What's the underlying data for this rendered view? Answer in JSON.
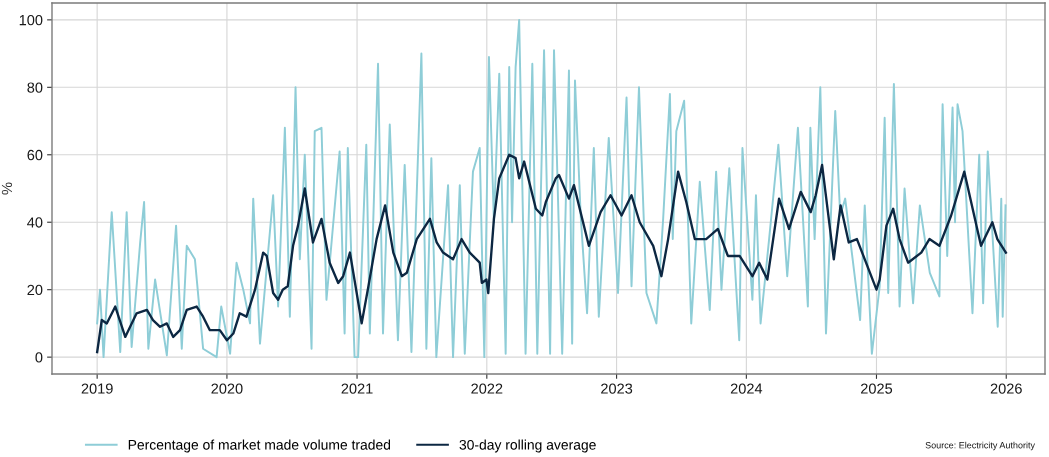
{
  "chart_data": {
    "type": "line",
    "ylabel": "%",
    "series": [
      {
        "name": "Percentage of market made volume traded",
        "color": "#8ecdd7",
        "x": [
          "2019-01-01",
          "2019-01-09",
          "2019-01-19",
          "2019-02-11",
          "2019-03-07",
          "2019-03-25",
          "2019-04-08",
          "2019-05-02",
          "2019-05-13",
          "2019-05-25",
          "2019-06-13",
          "2019-07-16",
          "2019-08-11",
          "2019-08-27",
          "2019-09-10",
          "2019-10-03",
          "2019-10-26",
          "2019-12-03",
          "2019-12-16",
          "2020-01-10",
          "2020-01-28",
          "2020-02-16",
          "2020-03-06",
          "2020-03-15",
          "2020-04-03",
          "2020-05-10",
          "2020-05-24",
          "2020-06-12",
          "2020-06-26",
          "2020-07-12",
          "2020-07-24",
          "2020-08-07",
          "2020-08-26",
          "2020-09-04",
          "2020-09-23",
          "2020-10-07",
          "2020-11-13",
          "2020-11-27",
          "2020-12-06",
          "2020-12-25",
          "2021-01-04",
          "2021-01-27",
          "2021-02-06",
          "2021-03-01",
          "2021-03-15",
          "2021-04-03",
          "2021-04-26",
          "2021-05-15",
          "2021-06-03",
          "2021-07-01",
          "2021-07-15",
          "2021-07-29",
          "2021-08-12",
          "2021-09-14",
          "2021-09-28",
          "2021-10-17",
          "2021-10-31",
          "2021-11-23",
          "2021-12-12",
          "2021-12-25",
          "2022-01-07",
          "2022-01-21",
          "2022-02-05",
          "2022-02-23",
          "2022-03-05",
          "2022-03-13",
          "2022-03-23",
          "2022-04-02",
          "2022-04-20",
          "2022-05-09",
          "2022-05-23",
          "2022-06-11",
          "2022-06-28",
          "2022-07-09",
          "2022-08-01",
          "2022-08-20",
          "2022-08-29",
          "2022-09-06",
          "2022-09-22",
          "2022-10-10",
          "2022-10-29",
          "2022-11-12",
          "2022-12-10",
          "2023-01-05",
          "2023-01-29",
          "2023-02-12",
          "2023-03-05",
          "2023-03-26",
          "2023-04-23",
          "2023-05-12",
          "2023-05-31",
          "2023-06-08",
          "2023-06-18",
          "2023-07-10",
          "2023-07-30",
          "2023-08-23",
          "2023-09-20",
          "2023-10-08",
          "2023-10-23",
          "2023-11-14",
          "2023-12-12",
          "2023-12-21",
          "2024-01-18",
          "2024-01-28",
          "2024-02-10",
          "2024-03-05",
          "2024-03-31",
          "2024-04-25",
          "2024-05-25",
          "2024-06-22",
          "2024-06-29",
          "2024-07-11",
          "2024-07-27",
          "2024-08-12",
          "2024-09-07",
          "2024-09-21",
          "2024-10-05",
          "2024-11-16",
          "2024-11-29",
          "2024-12-19",
          "2025-01-10",
          "2025-01-24",
          "2025-02-03",
          "2025-02-19",
          "2025-03-07",
          "2025-03-21",
          "2025-04-14",
          "2025-05-03",
          "2025-05-31",
          "2025-06-27",
          "2025-07-06",
          "2025-07-19",
          "2025-08-03",
          "2025-08-10",
          "2025-08-17",
          "2025-08-31",
          "2025-09-28",
          "2025-10-17",
          "2025-10-28",
          "2025-11-10",
          "2025-12-08",
          "2025-12-18",
          "2025-12-22",
          "2025-12-30"
        ],
        "values": [
          10,
          20,
          0,
          43,
          1.5,
          43,
          3,
          34,
          46,
          2.5,
          23,
          0.5,
          39,
          2.5,
          33,
          29,
          2.5,
          0,
          15,
          1,
          28,
          20,
          10,
          47,
          4,
          48,
          15,
          68,
          12,
          80,
          29,
          60,
          2.5,
          67,
          68,
          17,
          61,
          7,
          62,
          0,
          0,
          63,
          7,
          87,
          7,
          69,
          5,
          57,
          1.5,
          90,
          2.5,
          59,
          0,
          51,
          0,
          51,
          1,
          55,
          62,
          0,
          89,
          40,
          84,
          1,
          86,
          40,
          86,
          100,
          1,
          87,
          1,
          91,
          1,
          91,
          1,
          85,
          4,
          82,
          42,
          13,
          62,
          12,
          65,
          19,
          77,
          21,
          80,
          19,
          10,
          41,
          78,
          35,
          67,
          76,
          10,
          52,
          14,
          55,
          20,
          56,
          5,
          62,
          17,
          48,
          10,
          35,
          63,
          24,
          68,
          15,
          68,
          35,
          80,
          7,
          73,
          42,
          47,
          11,
          45,
          1,
          21,
          71,
          19,
          81,
          15,
          50,
          16,
          45,
          25,
          18,
          75,
          30,
          74,
          40,
          75,
          67,
          13,
          60,
          16,
          61,
          9,
          47,
          12,
          45
        ]
      },
      {
        "name": "30-day rolling average",
        "color": "#0c2742",
        "x": [
          "2019-01-01",
          "2019-01-14",
          "2019-01-28",
          "2019-02-21",
          "2019-03-21",
          "2019-04-22",
          "2019-05-21",
          "2019-06-07",
          "2019-06-27",
          "2019-07-16",
          "2019-08-03",
          "2019-08-22",
          "2019-09-10",
          "2019-10-08",
          "2019-10-26",
          "2019-11-14",
          "2019-12-12",
          "2020-01-01",
          "2020-01-19",
          "2020-02-06",
          "2020-02-25",
          "2020-03-20",
          "2020-04-12",
          "2020-04-22",
          "2020-05-10",
          "2020-05-24",
          "2020-06-06",
          "2020-06-20",
          "2020-07-05",
          "2020-07-19",
          "2020-08-07",
          "2020-08-30",
          "2020-09-23",
          "2020-10-16",
          "2020-11-09",
          "2020-11-23",
          "2020-12-12",
          "2020-12-31",
          "2021-01-14",
          "2021-02-02",
          "2021-02-25",
          "2021-03-21",
          "2021-04-13",
          "2021-05-07",
          "2021-05-21",
          "2021-06-18",
          "2021-07-25",
          "2021-08-13",
          "2021-08-31",
          "2021-09-28",
          "2021-10-22",
          "2021-11-14",
          "2021-12-12",
          "2021-12-18",
          "2021-12-31",
          "2022-01-05",
          "2022-01-21",
          "2022-02-05",
          "2022-03-05",
          "2022-03-23",
          "2022-04-02",
          "2022-04-16",
          "2022-05-19",
          "2022-06-06",
          "2022-06-16",
          "2022-07-14",
          "2022-07-23",
          "2022-08-20",
          "2022-09-03",
          "2022-10-15",
          "2022-11-17",
          "2022-12-15",
          "2023-01-15",
          "2023-02-12",
          "2023-03-07",
          "2023-04-14",
          "2023-05-07",
          "2023-05-26",
          "2023-06-23",
          "2023-07-16",
          "2023-08-09",
          "2023-09-10",
          "2023-10-13",
          "2023-11-10",
          "2023-12-13",
          "2024-01-18",
          "2024-02-06",
          "2024-02-29",
          "2024-04-02",
          "2024-04-30",
          "2024-06-02",
          "2024-06-30",
          "2024-07-14",
          "2024-08-01",
          "2024-09-03",
          "2024-09-22",
          "2024-10-15",
          "2024-11-07",
          "2025-01-01",
          "2025-01-10",
          "2025-01-29",
          "2025-02-17",
          "2025-03-07",
          "2025-03-31",
          "2025-05-07",
          "2025-05-30",
          "2025-06-27",
          "2025-07-30",
          "2025-09-05",
          "2025-10-22",
          "2025-11-23",
          "2025-12-07",
          "2025-12-31"
        ],
        "values": [
          1.5,
          11,
          10,
          15,
          6,
          13,
          14,
          11,
          9,
          10,
          6,
          8,
          14,
          15,
          12,
          8,
          8,
          5,
          7,
          13,
          12,
          20,
          31,
          30,
          19,
          17,
          20,
          21,
          33,
          39,
          50,
          34,
          41,
          28,
          22,
          24,
          31,
          19,
          10,
          21,
          35,
          45,
          31,
          24,
          25,
          35,
          41,
          34,
          31,
          29,
          35,
          31,
          28,
          22,
          23,
          19,
          41,
          53,
          60,
          59,
          53,
          58,
          44,
          42,
          46,
          53,
          54,
          47,
          51,
          33,
          43,
          48,
          42,
          48,
          40,
          33,
          24,
          35,
          55,
          46,
          35,
          35,
          38,
          30,
          30,
          24,
          28,
          23,
          47,
          38,
          49,
          43,
          48,
          57,
          29,
          45,
          34,
          35,
          20,
          23,
          39,
          44,
          35,
          28,
          31,
          35,
          33,
          42,
          55,
          33,
          40,
          35,
          31
        ]
      }
    ],
    "xlim": [
      "2018-08-27",
      "2026-04-20"
    ],
    "ylim": [
      -5,
      105
    ],
    "xticks": [
      {
        "value": "2019-01-01",
        "label": "2019"
      },
      {
        "value": "2020-01-01",
        "label": "2020"
      },
      {
        "value": "2021-01-01",
        "label": "2021"
      },
      {
        "value": "2022-01-01",
        "label": "2022"
      },
      {
        "value": "2023-01-01",
        "label": "2023"
      },
      {
        "value": "2024-01-01",
        "label": "2024"
      },
      {
        "value": "2025-01-01",
        "label": "2025"
      },
      {
        "value": "2026-01-01",
        "label": "2026"
      }
    ],
    "yticks": [
      0,
      20,
      40,
      60,
      80,
      100
    ],
    "grid": true,
    "legend": "bottom",
    "line_style": "solid",
    "annotations": [
      "Source: Electricity Authority"
    ]
  }
}
